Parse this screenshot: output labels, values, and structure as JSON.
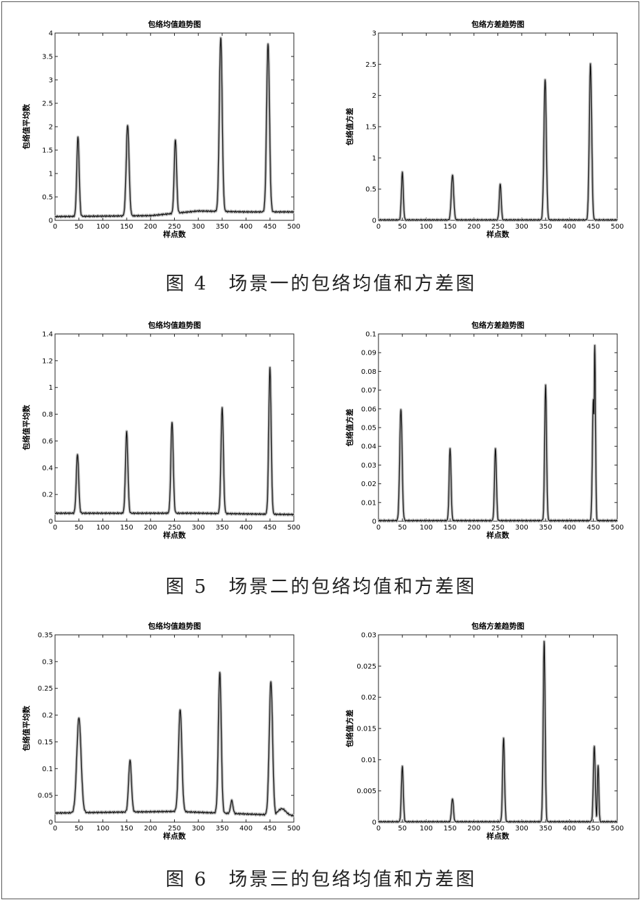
{
  "captions": [
    "图 4　场景一的包络均值和方差图",
    "图 5　场景二的包络均值和方差图",
    "图 6　场景三的包络均值和方差图"
  ],
  "chart_data": [
    {
      "type": "line",
      "title": "包络均值趋势图",
      "xlabel": "样点数",
      "ylabel": "包络值平均数",
      "xlim": [
        0,
        500
      ],
      "ylim": [
        0,
        4
      ],
      "xticks": [
        "0",
        "50",
        "100",
        "150",
        "200",
        "250",
        "300",
        "350",
        "400",
        "450",
        "500"
      ],
      "yticks": [
        "0",
        "0.5",
        "1",
        "1.5",
        "2",
        "2.5",
        "3",
        "3.5",
        "4"
      ],
      "baseline": [
        [
          0,
          0.08
        ],
        [
          100,
          0.09
        ],
        [
          200,
          0.1
        ],
        [
          300,
          0.2
        ],
        [
          400,
          0.18
        ],
        [
          500,
          0.18
        ]
      ],
      "peaks": [
        [
          48,
          1.78,
          2.5
        ],
        [
          152,
          2.03,
          3
        ],
        [
          252,
          1.73,
          2.5
        ],
        [
          347,
          3.9,
          3
        ],
        [
          446,
          3.78,
          3
        ]
      ],
      "grid": false,
      "legend": "none"
    },
    {
      "type": "line",
      "title": "包络方差趋势图",
      "xlabel": "样点数",
      "ylabel": "包络值方差",
      "xlim": [
        0,
        500
      ],
      "ylim": [
        0,
        3
      ],
      "xticks": [
        "0",
        "50",
        "100",
        "150",
        "200",
        "250",
        "300",
        "350",
        "400",
        "450",
        "500"
      ],
      "yticks": [
        "0",
        "0.5",
        "1",
        "1.5",
        "2",
        "2.5",
        "3"
      ],
      "baseline": [
        [
          0,
          0.005
        ],
        [
          500,
          0.005
        ]
      ],
      "peaks": [
        [
          50,
          0.77,
          2
        ],
        [
          155,
          0.72,
          2.5
        ],
        [
          255,
          0.58,
          2
        ],
        [
          349,
          2.25,
          2.5
        ],
        [
          444,
          2.5,
          2.5
        ]
      ],
      "grid": false,
      "legend": "none"
    },
    {
      "type": "line",
      "title": "包络均值趋势图",
      "xlabel": "样点数",
      "ylabel": "包络值平均数",
      "xlim": [
        0,
        500
      ],
      "ylim": [
        0,
        1.4
      ],
      "xticks": [
        "0",
        "50",
        "100",
        "150",
        "200",
        "250",
        "300",
        "350",
        "400",
        "450",
        "500"
      ],
      "yticks": [
        "0",
        "0.2",
        "0.4",
        "0.6",
        "0.8",
        "1",
        "1.2",
        "1.4"
      ],
      "baseline": [
        [
          0,
          0.06
        ],
        [
          300,
          0.06
        ],
        [
          500,
          0.05
        ]
      ],
      "peaks": [
        [
          47,
          0.5,
          2.5
        ],
        [
          150,
          0.67,
          2.5
        ],
        [
          245,
          0.74,
          2.5
        ],
        [
          350,
          0.85,
          2.5
        ],
        [
          450,
          1.15,
          2.5
        ]
      ],
      "grid": false,
      "legend": "none"
    },
    {
      "type": "line",
      "title": "包络方差趋势图",
      "xlabel": "样点数",
      "ylabel": "包络值方差",
      "xlim": [
        0,
        500
      ],
      "ylim": [
        0,
        0.1
      ],
      "xticks": [
        "0",
        "50",
        "100",
        "150",
        "200",
        "250",
        "300",
        "350",
        "400",
        "450",
        "500"
      ],
      "yticks": [
        "0",
        "0.01",
        "0.02",
        "0.03",
        "0.04",
        "0.05",
        "0.06",
        "0.07",
        "0.08",
        "0.09",
        "0.1"
      ],
      "baseline": [
        [
          0,
          0.0003
        ],
        [
          500,
          0.0003
        ]
      ],
      "peaks": [
        [
          47,
          0.06,
          2.5
        ],
        [
          150,
          0.039,
          2
        ],
        [
          245,
          0.039,
          2
        ],
        [
          350,
          0.073,
          2
        ],
        [
          450,
          0.065,
          2
        ],
        [
          453,
          0.094,
          1.5
        ]
      ],
      "grid": false,
      "legend": "none"
    },
    {
      "type": "line",
      "title": "包络均值趋势图",
      "xlabel": "样点数",
      "ylabel": "包络值平均数",
      "xlim": [
        0,
        500
      ],
      "ylim": [
        0,
        0.35
      ],
      "xticks": [
        "0",
        "50",
        "100",
        "150",
        "200",
        "250",
        "300",
        "350",
        "400",
        "450",
        "500"
      ],
      "yticks": [
        "0",
        "0.05",
        "0.1",
        "0.15",
        "0.2",
        "0.25",
        "0.3",
        "0.35"
      ],
      "baseline": [
        [
          0,
          0.017
        ],
        [
          250,
          0.02
        ],
        [
          500,
          0.012
        ]
      ],
      "peaks": [
        [
          50,
          0.195,
          4.5
        ],
        [
          157,
          0.115,
          3
        ],
        [
          262,
          0.21,
          3.5
        ],
        [
          345,
          0.28,
          3
        ],
        [
          370,
          0.04,
          2.5
        ],
        [
          452,
          0.262,
          3.5
        ],
        [
          475,
          0.025,
          8
        ]
      ],
      "grid": false,
      "legend": "none"
    },
    {
      "type": "line",
      "title": "包络方差趋势图",
      "xlabel": "样点数",
      "ylabel": "包络值方差",
      "xlim": [
        0,
        500
      ],
      "ylim": [
        0,
        0.03
      ],
      "xticks": [
        "0",
        "50",
        "100",
        "150",
        "200",
        "250",
        "300",
        "350",
        "400",
        "450",
        "500"
      ],
      "yticks": [
        "0",
        "0.005",
        "0.01",
        "0.015",
        "0.02",
        "0.025",
        "0.03"
      ],
      "baseline": [
        [
          0,
          5e-05
        ],
        [
          500,
          5e-05
        ]
      ],
      "peaks": [
        [
          50,
          0.009,
          2
        ],
        [
          155,
          0.0038,
          2
        ],
        [
          262,
          0.0135,
          2
        ],
        [
          347,
          0.029,
          2
        ],
        [
          452,
          0.0122,
          2
        ],
        [
          460,
          0.009,
          1.5
        ]
      ],
      "grid": false,
      "legend": "none"
    }
  ]
}
